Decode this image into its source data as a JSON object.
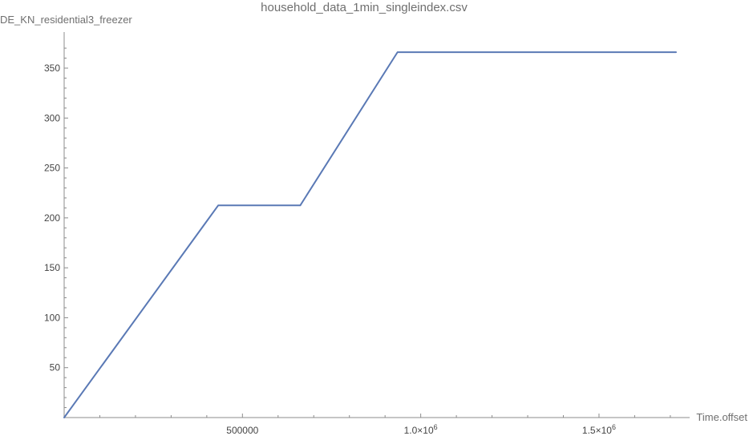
{
  "chart_data": {
    "type": "line",
    "title": "household_data_1min_singleindex.csv",
    "xlabel": "Time.offset",
    "ylabel": "DE_KN_residential3_freezer",
    "xlim": [
      0,
      1800000
    ],
    "ylim": [
      0,
      380
    ],
    "x_ticks": [
      {
        "value": 500000,
        "label": "500000"
      },
      {
        "value": 1000000,
        "label": "1.0×10",
        "exp": "6"
      },
      {
        "value": 1500000,
        "label": "1.5×10",
        "exp": "6"
      }
    ],
    "y_ticks": [
      50,
      100,
      150,
      200,
      250,
      300,
      350
    ],
    "series": [
      {
        "color": "#5a79b5",
        "points": [
          [
            0,
            0
          ],
          [
            432000,
            212.5
          ],
          [
            662000,
            212.5
          ],
          [
            935000,
            366
          ],
          [
            1716000,
            366
          ]
        ]
      }
    ]
  }
}
